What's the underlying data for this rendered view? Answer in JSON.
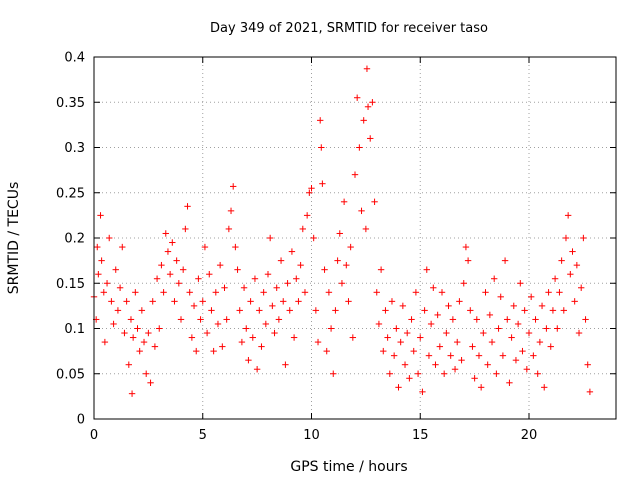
{
  "chart_data": {
    "type": "scatter",
    "title": "Day 349 of 2021, SRMTID for receiver taso",
    "xlabel": "GPS time / hours",
    "ylabel": "SRMTID / TECUs",
    "xlim": [
      0,
      24
    ],
    "ylim": [
      0,
      0.4
    ],
    "x_ticks": [
      0,
      5,
      10,
      15,
      20
    ],
    "x_tick_labels": [
      "0",
      "5",
      "10",
      "15",
      "20"
    ],
    "y_ticks": [
      0,
      0.05,
      0.1,
      0.15,
      0.2,
      0.25,
      0.3,
      0.35,
      0.4
    ],
    "y_tick_labels": [
      "0",
      "0.05",
      "0.1",
      "0.15",
      "0.2",
      "0.25",
      "0.3",
      "0.35",
      "0.4"
    ],
    "grid": true,
    "marker": "+",
    "color": "#ff0000",
    "x_range_of_data": [
      0,
      22.8
    ],
    "series": [
      {
        "name": "SRMTID",
        "points": [
          [
            0.0,
            0.135
          ],
          [
            0.1,
            0.11
          ],
          [
            0.15,
            0.19
          ],
          [
            0.2,
            0.16
          ],
          [
            0.3,
            0.225
          ],
          [
            0.35,
            0.175
          ],
          [
            0.45,
            0.14
          ],
          [
            0.5,
            0.085
          ],
          [
            0.6,
            0.15
          ],
          [
            0.7,
            0.2
          ],
          [
            0.8,
            0.13
          ],
          [
            0.9,
            0.105
          ],
          [
            1.0,
            0.165
          ],
          [
            1.1,
            0.12
          ],
          [
            1.2,
            0.145
          ],
          [
            1.3,
            0.19
          ],
          [
            1.4,
            0.095
          ],
          [
            1.5,
            0.13
          ],
          [
            1.6,
            0.06
          ],
          [
            1.7,
            0.11
          ],
          [
            1.75,
            0.028
          ],
          [
            1.8,
            0.09
          ],
          [
            1.9,
            0.14
          ],
          [
            2.0,
            0.1
          ],
          [
            2.1,
            0.075
          ],
          [
            2.2,
            0.12
          ],
          [
            2.3,
            0.085
          ],
          [
            2.4,
            0.05
          ],
          [
            2.5,
            0.095
          ],
          [
            2.6,
            0.04
          ],
          [
            2.7,
            0.13
          ],
          [
            2.8,
            0.08
          ],
          [
            2.9,
            0.155
          ],
          [
            3.0,
            0.1
          ],
          [
            3.1,
            0.17
          ],
          [
            3.2,
            0.14
          ],
          [
            3.3,
            0.205
          ],
          [
            3.4,
            0.185
          ],
          [
            3.5,
            0.16
          ],
          [
            3.6,
            0.195
          ],
          [
            3.7,
            0.13
          ],
          [
            3.8,
            0.175
          ],
          [
            3.9,
            0.15
          ],
          [
            4.0,
            0.11
          ],
          [
            4.1,
            0.165
          ],
          [
            4.2,
            0.21
          ],
          [
            4.3,
            0.235
          ],
          [
            4.4,
            0.14
          ],
          [
            4.5,
            0.09
          ],
          [
            4.6,
            0.125
          ],
          [
            4.7,
            0.075
          ],
          [
            4.8,
            0.155
          ],
          [
            4.9,
            0.11
          ],
          [
            5.0,
            0.13
          ],
          [
            5.1,
            0.19
          ],
          [
            5.2,
            0.095
          ],
          [
            5.3,
            0.16
          ],
          [
            5.4,
            0.12
          ],
          [
            5.5,
            0.075
          ],
          [
            5.6,
            0.14
          ],
          [
            5.7,
            0.105
          ],
          [
            5.8,
            0.17
          ],
          [
            5.9,
            0.08
          ],
          [
            6.0,
            0.145
          ],
          [
            6.1,
            0.11
          ],
          [
            6.2,
            0.21
          ],
          [
            6.3,
            0.23
          ],
          [
            6.4,
            0.257
          ],
          [
            6.5,
            0.19
          ],
          [
            6.6,
            0.165
          ],
          [
            6.7,
            0.12
          ],
          [
            6.8,
            0.085
          ],
          [
            6.9,
            0.145
          ],
          [
            7.0,
            0.1
          ],
          [
            7.1,
            0.065
          ],
          [
            7.2,
            0.13
          ],
          [
            7.3,
            0.09
          ],
          [
            7.4,
            0.155
          ],
          [
            7.5,
            0.055
          ],
          [
            7.6,
            0.12
          ],
          [
            7.7,
            0.08
          ],
          [
            7.8,
            0.14
          ],
          [
            7.9,
            0.105
          ],
          [
            8.0,
            0.16
          ],
          [
            8.1,
            0.2
          ],
          [
            8.2,
            0.125
          ],
          [
            8.3,
            0.095
          ],
          [
            8.4,
            0.145
          ],
          [
            8.5,
            0.11
          ],
          [
            8.6,
            0.175
          ],
          [
            8.7,
            0.13
          ],
          [
            8.8,
            0.06
          ],
          [
            8.9,
            0.15
          ],
          [
            9.0,
            0.12
          ],
          [
            9.1,
            0.185
          ],
          [
            9.2,
            0.09
          ],
          [
            9.3,
            0.155
          ],
          [
            9.4,
            0.13
          ],
          [
            9.5,
            0.17
          ],
          [
            9.6,
            0.21
          ],
          [
            9.7,
            0.14
          ],
          [
            9.8,
            0.225
          ],
          [
            9.9,
            0.25
          ],
          [
            10.0,
            0.255
          ],
          [
            10.1,
            0.2
          ],
          [
            10.2,
            0.12
          ],
          [
            10.3,
            0.085
          ],
          [
            10.4,
            0.33
          ],
          [
            10.45,
            0.3
          ],
          [
            10.5,
            0.26
          ],
          [
            10.6,
            0.165
          ],
          [
            10.7,
            0.075
          ],
          [
            10.8,
            0.14
          ],
          [
            10.9,
            0.1
          ],
          [
            11.0,
            0.05
          ],
          [
            11.1,
            0.12
          ],
          [
            11.2,
            0.175
          ],
          [
            11.3,
            0.205
          ],
          [
            11.4,
            0.15
          ],
          [
            11.5,
            0.24
          ],
          [
            11.6,
            0.17
          ],
          [
            11.7,
            0.13
          ],
          [
            11.8,
            0.19
          ],
          [
            11.9,
            0.09
          ],
          [
            12.0,
            0.27
          ],
          [
            12.1,
            0.355
          ],
          [
            12.2,
            0.3
          ],
          [
            12.3,
            0.23
          ],
          [
            12.4,
            0.33
          ],
          [
            12.5,
            0.21
          ],
          [
            12.55,
            0.387
          ],
          [
            12.6,
            0.345
          ],
          [
            12.7,
            0.31
          ],
          [
            12.8,
            0.35
          ],
          [
            12.9,
            0.24
          ],
          [
            13.0,
            0.14
          ],
          [
            13.1,
            0.105
          ],
          [
            13.2,
            0.165
          ],
          [
            13.3,
            0.075
          ],
          [
            13.4,
            0.12
          ],
          [
            13.5,
            0.09
          ],
          [
            13.6,
            0.05
          ],
          [
            13.7,
            0.13
          ],
          [
            13.8,
            0.07
          ],
          [
            13.9,
            0.1
          ],
          [
            14.0,
            0.035
          ],
          [
            14.1,
            0.085
          ],
          [
            14.2,
            0.125
          ],
          [
            14.3,
            0.06
          ],
          [
            14.4,
            0.095
          ],
          [
            14.5,
            0.045
          ],
          [
            14.6,
            0.11
          ],
          [
            14.7,
            0.075
          ],
          [
            14.8,
            0.14
          ],
          [
            14.9,
            0.05
          ],
          [
            15.0,
            0.09
          ],
          [
            15.1,
            0.03
          ],
          [
            15.2,
            0.12
          ],
          [
            15.3,
            0.165
          ],
          [
            15.4,
            0.07
          ],
          [
            15.5,
            0.105
          ],
          [
            15.6,
            0.145
          ],
          [
            15.7,
            0.06
          ],
          [
            15.8,
            0.115
          ],
          [
            15.9,
            0.08
          ],
          [
            16.0,
            0.14
          ],
          [
            16.1,
            0.05
          ],
          [
            16.2,
            0.095
          ],
          [
            16.3,
            0.125
          ],
          [
            16.4,
            0.07
          ],
          [
            16.5,
            0.11
          ],
          [
            16.6,
            0.055
          ],
          [
            16.7,
            0.085
          ],
          [
            16.8,
            0.13
          ],
          [
            16.9,
            0.065
          ],
          [
            17.0,
            0.15
          ],
          [
            17.1,
            0.19
          ],
          [
            17.2,
            0.175
          ],
          [
            17.3,
            0.12
          ],
          [
            17.4,
            0.08
          ],
          [
            17.5,
            0.045
          ],
          [
            17.6,
            0.11
          ],
          [
            17.7,
            0.07
          ],
          [
            17.8,
            0.035
          ],
          [
            17.9,
            0.095
          ],
          [
            18.0,
            0.14
          ],
          [
            18.1,
            0.06
          ],
          [
            18.2,
            0.115
          ],
          [
            18.3,
            0.085
          ],
          [
            18.4,
            0.155
          ],
          [
            18.5,
            0.05
          ],
          [
            18.6,
            0.1
          ],
          [
            18.7,
            0.135
          ],
          [
            18.8,
            0.07
          ],
          [
            18.9,
            0.175
          ],
          [
            19.0,
            0.11
          ],
          [
            19.1,
            0.04
          ],
          [
            19.2,
            0.09
          ],
          [
            19.3,
            0.125
          ],
          [
            19.4,
            0.065
          ],
          [
            19.5,
            0.105
          ],
          [
            19.6,
            0.15
          ],
          [
            19.7,
            0.075
          ],
          [
            19.8,
            0.12
          ],
          [
            19.9,
            0.055
          ],
          [
            20.0,
            0.095
          ],
          [
            20.1,
            0.135
          ],
          [
            20.2,
            0.07
          ],
          [
            20.3,
            0.11
          ],
          [
            20.4,
            0.05
          ],
          [
            20.5,
            0.085
          ],
          [
            20.6,
            0.125
          ],
          [
            20.7,
            0.035
          ],
          [
            20.8,
            0.1
          ],
          [
            20.9,
            0.14
          ],
          [
            21.0,
            0.08
          ],
          [
            21.1,
            0.12
          ],
          [
            21.2,
            0.155
          ],
          [
            21.3,
            0.1
          ],
          [
            21.4,
            0.14
          ],
          [
            21.5,
            0.175
          ],
          [
            21.6,
            0.12
          ],
          [
            21.7,
            0.2
          ],
          [
            21.8,
            0.225
          ],
          [
            21.9,
            0.16
          ],
          [
            22.0,
            0.185
          ],
          [
            22.1,
            0.13
          ],
          [
            22.2,
            0.17
          ],
          [
            22.3,
            0.095
          ],
          [
            22.4,
            0.145
          ],
          [
            22.5,
            0.2
          ],
          [
            22.6,
            0.11
          ],
          [
            22.7,
            0.06
          ],
          [
            22.8,
            0.03
          ]
        ]
      }
    ]
  }
}
